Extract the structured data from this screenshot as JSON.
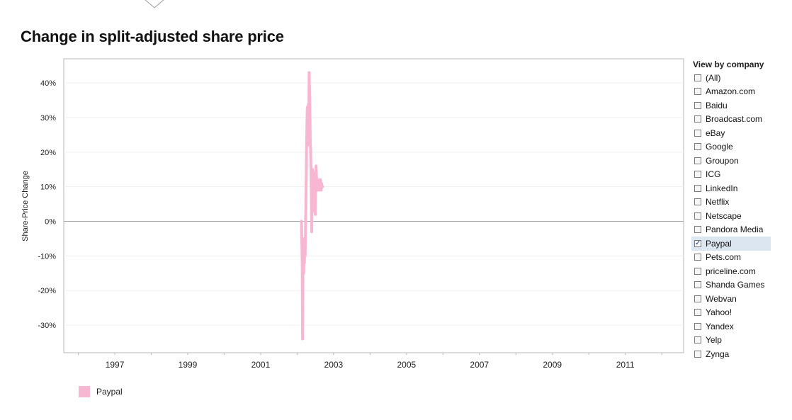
{
  "title": "Change in split-adjusted share price",
  "panel": {
    "title": "View by company",
    "items": [
      {
        "label": "(All)",
        "checked": false
      },
      {
        "label": "Amazon.com",
        "checked": false
      },
      {
        "label": "Baidu",
        "checked": false
      },
      {
        "label": "Broadcast.com",
        "checked": false
      },
      {
        "label": "eBay",
        "checked": false
      },
      {
        "label": "Google",
        "checked": false
      },
      {
        "label": "Groupon",
        "checked": false
      },
      {
        "label": "ICG",
        "checked": false
      },
      {
        "label": "LinkedIn",
        "checked": false
      },
      {
        "label": "Netflix",
        "checked": false
      },
      {
        "label": "Netscape",
        "checked": false
      },
      {
        "label": "Pandora Media",
        "checked": false
      },
      {
        "label": "Paypal",
        "checked": true
      },
      {
        "label": "Pets.com",
        "checked": false
      },
      {
        "label": "priceline.com",
        "checked": false
      },
      {
        "label": "Shanda Games",
        "checked": false
      },
      {
        "label": "Webvan",
        "checked": false
      },
      {
        "label": "Yahoo!",
        "checked": false
      },
      {
        "label": "Yandex",
        "checked": false
      },
      {
        "label": "Yelp",
        "checked": false
      },
      {
        "label": "Zynga",
        "checked": false
      }
    ]
  },
  "chart_data": {
    "type": "line",
    "title": "Change in split-adjusted share price",
    "xlabel": "",
    "ylabel": "Share-Price Change",
    "xlim": [
      1995.6,
      2012.6
    ],
    "ylim": [
      -38,
      47
    ],
    "x_ticks": [
      1997,
      1999,
      2001,
      2003,
      2005,
      2007,
      2009,
      2011
    ],
    "y_ticks": [
      -30,
      -20,
      -10,
      0,
      10,
      20,
      30,
      40
    ],
    "y_tick_labels": [
      "-30%",
      "-20%",
      "-10%",
      "0%",
      "10%",
      "20%",
      "30%",
      "40%"
    ],
    "x_tick_labels": [
      "1997",
      "1999",
      "2001",
      "2003",
      "2005",
      "2007",
      "2009",
      "2011"
    ],
    "grid": "horizontal",
    "legend_position": "bottom-left",
    "series": [
      {
        "name": "Paypal",
        "color": "#f7b6d2",
        "x": [
          2002.12,
          2002.14,
          2002.15,
          2002.16,
          2002.17,
          2002.18,
          2002.19,
          2002.2,
          2002.21,
          2002.22,
          2002.23,
          2002.24,
          2002.25,
          2002.26,
          2002.27,
          2002.28,
          2002.29,
          2002.3,
          2002.31,
          2002.32,
          2002.33,
          2002.34,
          2002.35,
          2002.36,
          2002.37,
          2002.38,
          2002.39,
          2002.4,
          2002.41,
          2002.42,
          2002.43,
          2002.44,
          2002.45,
          2002.46,
          2002.47,
          2002.48,
          2002.49,
          2002.5,
          2002.51,
          2002.52,
          2002.53,
          2002.54,
          2002.55,
          2002.56,
          2002.57,
          2002.58,
          2002.59,
          2002.6,
          2002.61,
          2002.62,
          2002.63,
          2002.64,
          2002.65,
          2002.66,
          2002.67,
          2002.68,
          2002.69,
          2002.7
        ],
        "values": [
          0,
          -12,
          -34,
          -16,
          -5,
          -15,
          -8,
          -12,
          -5,
          -10,
          -2,
          5,
          12,
          22,
          28,
          33,
          22,
          25,
          34,
          30,
          43,
          38,
          32,
          24,
          20,
          15,
          8,
          -3,
          5,
          15,
          10,
          14,
          12,
          3,
          8,
          10,
          6,
          2,
          12,
          16,
          13,
          10,
          9,
          11,
          10,
          12,
          11,
          9,
          10,
          11,
          10,
          12,
          10,
          9,
          11,
          10,
          10,
          10
        ]
      }
    ]
  }
}
